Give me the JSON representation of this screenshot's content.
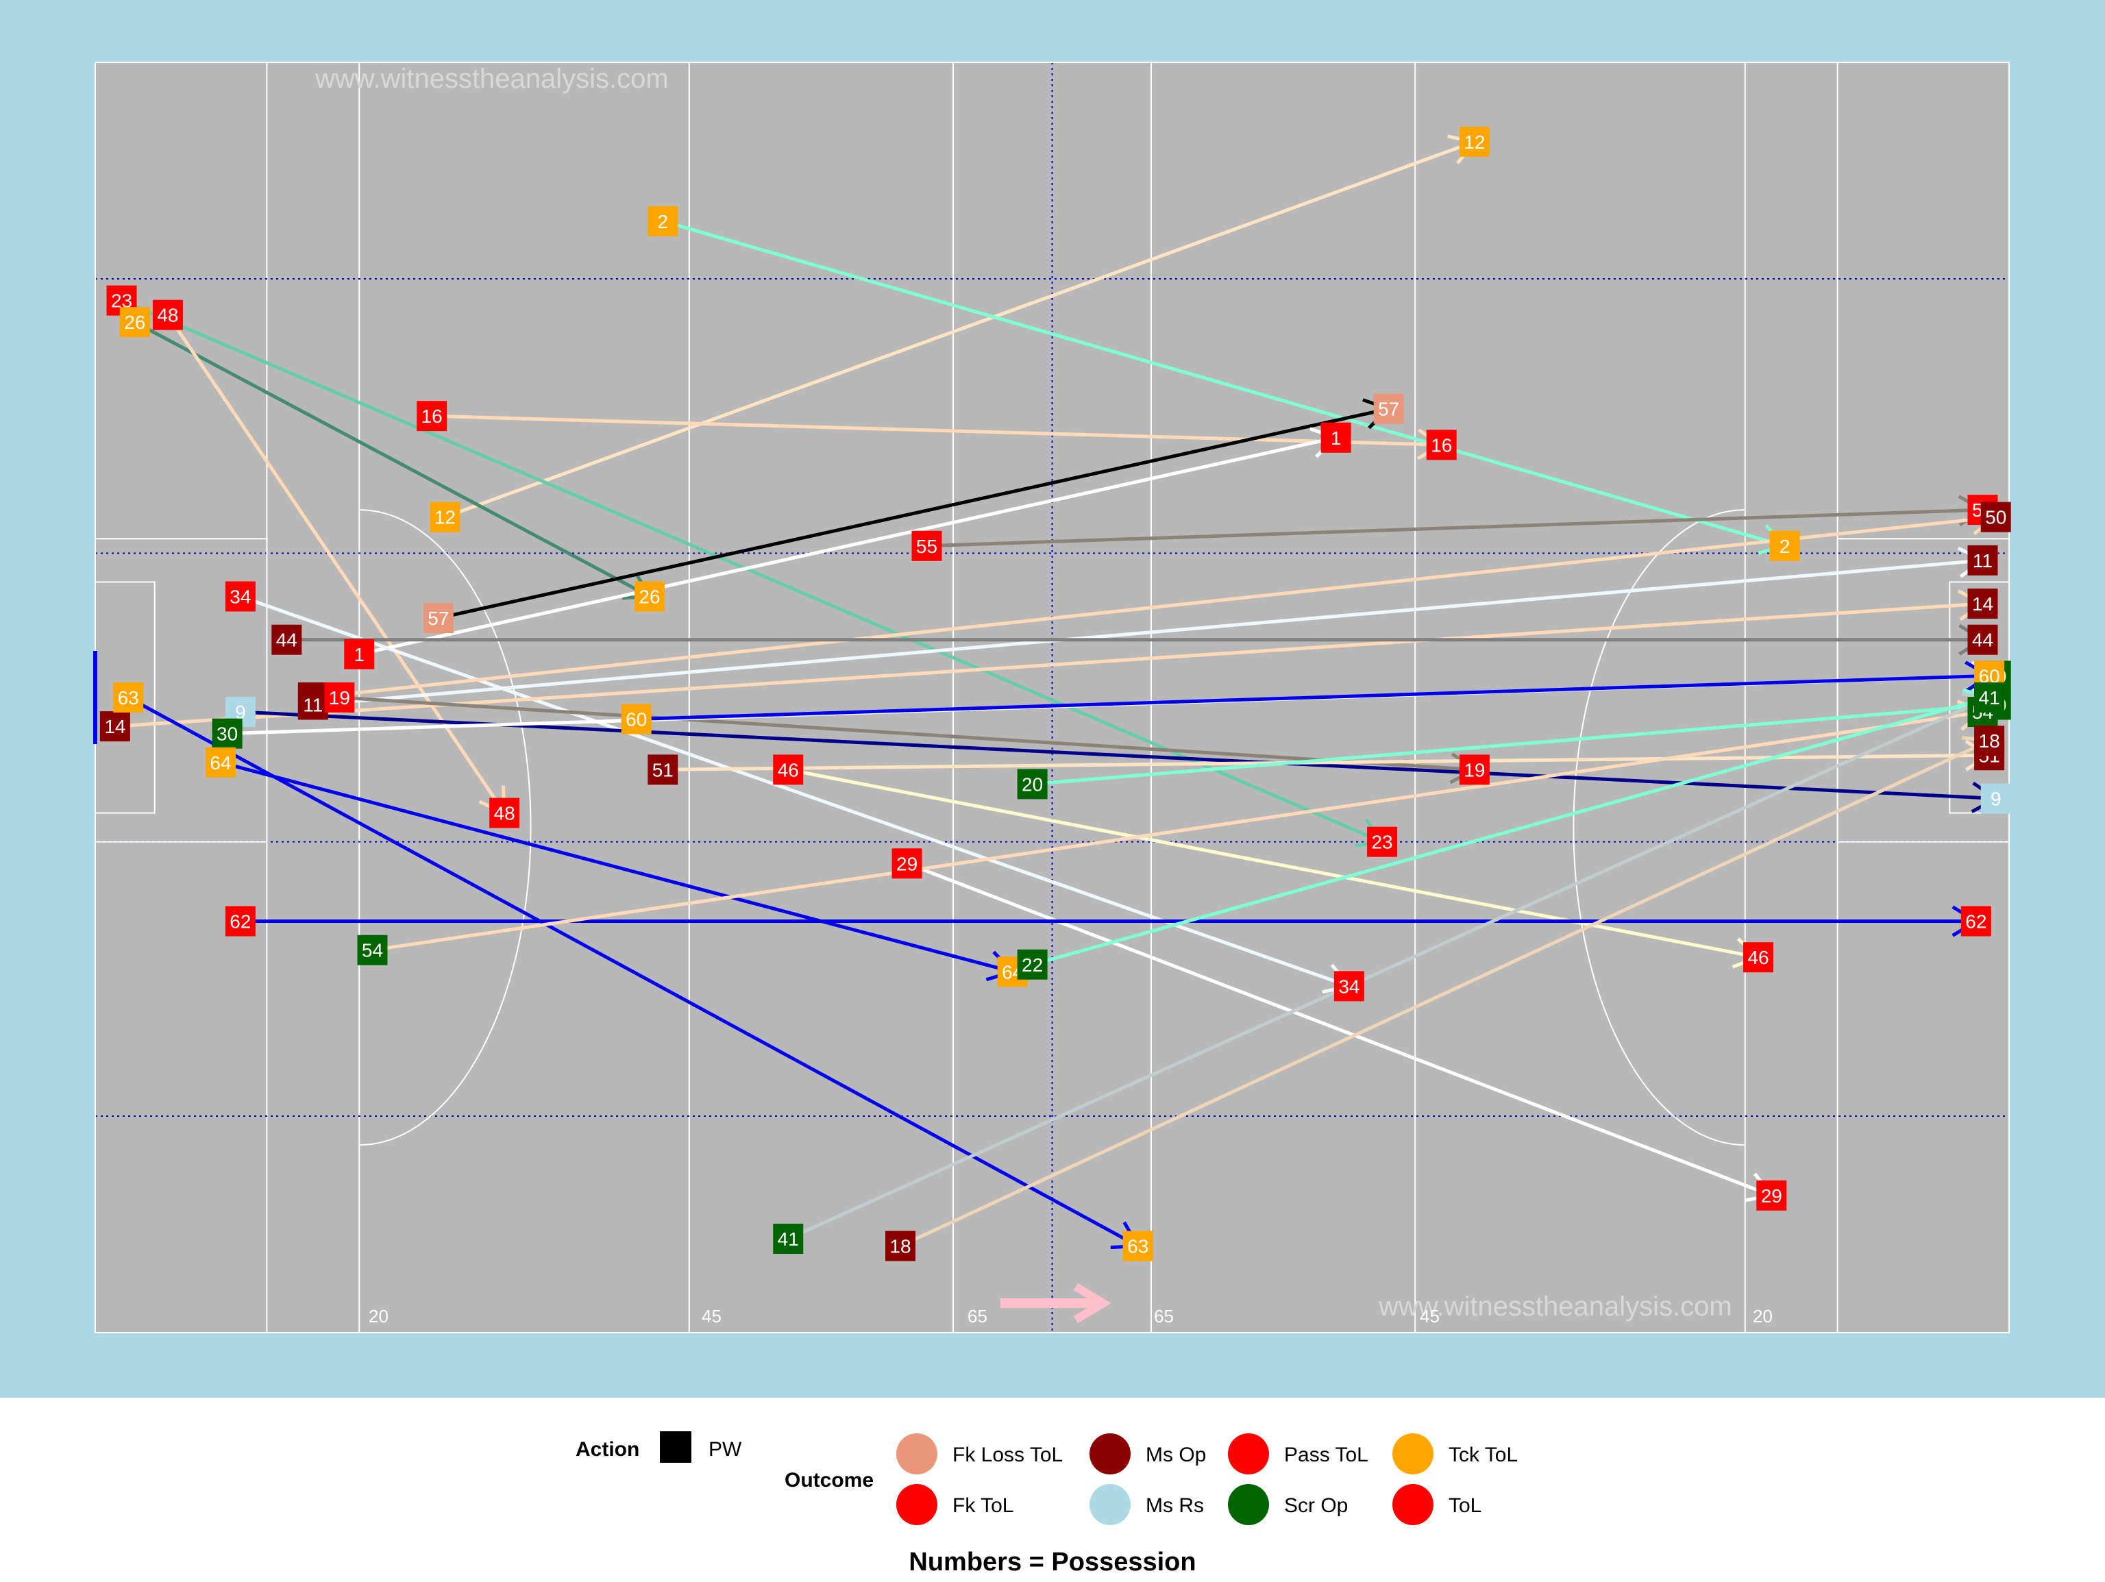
{
  "watermarks": [
    "www.witnesstheanalysis.com",
    "www.witnesstheanalysis.com"
  ],
  "pitch_labels": [
    "20",
    "45",
    "65",
    "65",
    "45",
    "20"
  ],
  "legend": {
    "action_title": "Action",
    "action_items": [
      {
        "label": "PW",
        "color": "#000000"
      }
    ],
    "outcome_title": "Outcome",
    "outcome_items": [
      {
        "label": "Fk Loss ToL",
        "color": "#E9967A"
      },
      {
        "label": "Fk ToL",
        "color": "#FF0000"
      },
      {
        "label": "Ms Op",
        "color": "#8B0000"
      },
      {
        "label": "Ms Rs",
        "color": "#ADD8E6"
      },
      {
        "label": "Pass ToL",
        "color": "#FF0000"
      },
      {
        "label": "Scr Op",
        "color": "#006400"
      },
      {
        "label": "Tck ToL",
        "color": "#FFA500"
      },
      {
        "label": "ToL",
        "color": "#FF0000"
      }
    ],
    "caption": "Numbers = Possession"
  },
  "chart_data": {
    "type": "scatter",
    "pitch": {
      "x_range": [
        0,
        145
      ],
      "y_range": [
        0,
        88
      ],
      "background": "#B8B8B8",
      "panel": "#ADD8E6"
    },
    "events": [
      {
        "p": "12",
        "x1": 26.5,
        "y1": 56.5,
        "x2": 104.5,
        "y2": 82.5,
        "line": "#FFE4C4",
        "fill": "#FFA500",
        "start_box": true
      },
      {
        "p": "2",
        "x1": 43,
        "y1": 77,
        "x2": 128,
        "y2": 54.5,
        "line": "#7FFFD4",
        "fill": "#FFA500",
        "start_box": true
      },
      {
        "p": "23",
        "x1": 2,
        "y1": 71.5,
        "x2": 97.5,
        "y2": 34,
        "line": "#66CDAA",
        "fill": "#FF0000",
        "start_box": true
      },
      {
        "p": "26",
        "x1": 3,
        "y1": 70,
        "x2": 42,
        "y2": 51,
        "line": "#458B74",
        "fill": "#FFA500",
        "start_box": true
      },
      {
        "p": "48",
        "x1": 5.5,
        "y1": 70.5,
        "x2": 31,
        "y2": 36,
        "line": "#FFDAB9",
        "fill": "#FF0000",
        "start_box": true
      },
      {
        "p": "16",
        "x1": 25.5,
        "y1": 63.5,
        "x2": 102,
        "y2": 61.5,
        "line": "#FFDAB9",
        "fill": "#FF0000",
        "start_box": true
      },
      {
        "p": "57",
        "x1": 26,
        "y1": 49.5,
        "x2": 98,
        "y2": 64,
        "line": "#000000",
        "fill": "#E9967A",
        "start_box": true
      },
      {
        "p": "1",
        "x1": 20,
        "y1": 47,
        "x2": 94,
        "y2": 62,
        "line": "#FFFFFF",
        "fill": "#FF0000",
        "start_box": true
      },
      {
        "p": "34",
        "x1": 11,
        "y1": 51,
        "x2": 95,
        "y2": 24,
        "line": "#F0F8FF",
        "fill": "#FF0000",
        "start_box": true
      },
      {
        "p": "55",
        "x1": 63,
        "y1": 54.5,
        "x2": 143,
        "y2": 57,
        "line": "#8B8378",
        "fill": "#FF0000",
        "start_box": true
      },
      {
        "p": "50",
        "x1": 16.5,
        "y1": 44,
        "x2": 144,
        "y2": 56.5,
        "line": "#FFDAB9",
        "fill": "#8B0000",
        "start_box": true
      },
      {
        "p": "11",
        "x1": 16.5,
        "y1": 43.5,
        "x2": 143,
        "y2": 53.5,
        "line": "#F0F8FF",
        "fill": "#8B0000",
        "start_box": true
      },
      {
        "p": "14",
        "x1": 1.5,
        "y1": 42,
        "x2": 143,
        "y2": 50.5,
        "line": "#FFDAB9",
        "fill": "#8B0000",
        "start_box": true
      },
      {
        "p": "44",
        "x1": 14.5,
        "y1": 48,
        "x2": 143,
        "y2": 48,
        "line": "#7F7F7F",
        "fill": "#8B0000",
        "start_box": true
      },
      {
        "p": "9",
        "x1": 11,
        "y1": 43,
        "x2": 144,
        "y2": 37,
        "line": "#00008B",
        "fill": "#ADD8E6",
        "start_box": true
      },
      {
        "p": "19",
        "x1": 18.5,
        "y1": 44,
        "x2": 104.5,
        "y2": 39,
        "line": "#8B8378",
        "fill": "#FF0000",
        "start_box": true
      },
      {
        "p": "63",
        "x1": 2.5,
        "y1": 44,
        "x2": 79,
        "y2": 6,
        "line": "#0000EE",
        "fill": "#FFA500",
        "start_box": true
      },
      {
        "p": "30",
        "x1": 10,
        "y1": 41.5,
        "x2": 144,
        "y2": 45.5,
        "line": "#FFFFFF",
        "fill": "#006400",
        "start_box": true
      },
      {
        "p": "64",
        "x1": 9.5,
        "y1": 39.5,
        "x2": 69.5,
        "y2": 25,
        "line": "#0000EE",
        "fill": "#FFA500",
        "start_box": true
      },
      {
        "p": "60",
        "x1": 41,
        "y1": 42.5,
        "x2": 143.5,
        "y2": 45.5,
        "line": "#0000EE",
        "fill": "#FFA500",
        "start_box": true
      },
      {
        "p": "51",
        "x1": 43,
        "y1": 39,
        "x2": 143.5,
        "y2": 40,
        "line": "#FFE4C4",
        "fill": "#8B0000",
        "start_box": true
      },
      {
        "p": "46",
        "x1": 52.5,
        "y1": 39,
        "x2": 126,
        "y2": 26,
        "line": "#FFFACD",
        "fill": "#FF0000",
        "start_box": true
      },
      {
        "p": "20",
        "x1": 71,
        "y1": 38,
        "x2": 144,
        "y2": 43.5,
        "line": "#7FFFD4",
        "fill": "#006400",
        "start_box": true
      },
      {
        "p": "29",
        "x1": 61.5,
        "y1": 32.5,
        "x2": 127,
        "y2": 9.5,
        "line": "#FFFFFF",
        "fill": "#FF0000",
        "start_box": true
      },
      {
        "p": "62",
        "x1": 11,
        "y1": 28.5,
        "x2": 142.5,
        "y2": 28.5,
        "line": "#0000EE",
        "fill": "#FF0000",
        "start_box": true
      },
      {
        "p": "54",
        "x1": 21,
        "y1": 26.5,
        "x2": 143,
        "y2": 43,
        "line": "#FFDAB9",
        "fill": "#006400",
        "start_box": true
      },
      {
        "p": "22",
        "x1": 71,
        "y1": 25.5,
        "x2": 143.5,
        "y2": 44,
        "line": "#7FFFD4",
        "fill": "#006400",
        "start_box": true
      },
      {
        "p": "41",
        "x1": 52.5,
        "y1": 6.5,
        "x2": 143.5,
        "y2": 44,
        "line": "#C1CDCD",
        "fill": "#006400",
        "start_box": true
      },
      {
        "p": "18",
        "x1": 61,
        "y1": 6,
        "x2": 143.5,
        "y2": 41,
        "line": "#EED5B7",
        "fill": "#8B0000",
        "start_box": true
      }
    ]
  }
}
